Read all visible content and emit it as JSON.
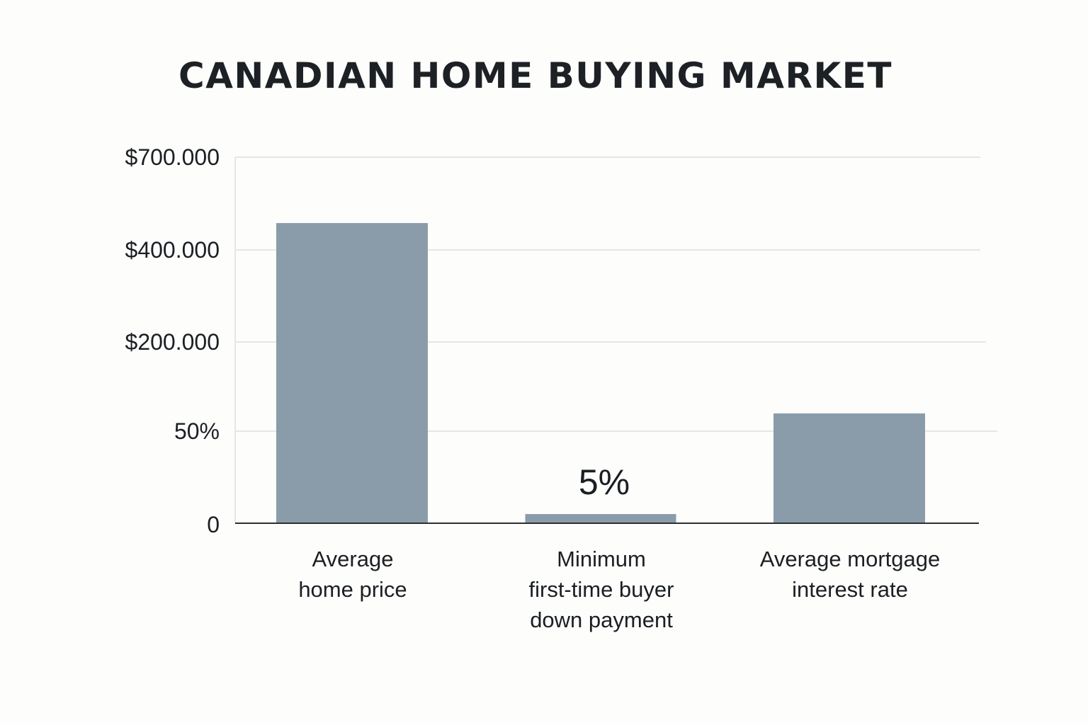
{
  "chart_data": {
    "type": "bar",
    "title": "CANADIAN HOME BUYING MARKET",
    "xlabel": "",
    "ylabel": "",
    "categories": [
      [
        "Average",
        "home price"
      ],
      [
        "Minimum",
        "first-time buyer",
        "down payment"
      ],
      [
        "Average mortgage",
        "interest rate"
      ]
    ],
    "y_ticks": [
      {
        "label": "$700.000"
      },
      {
        "label": "$400.000"
      },
      {
        "label": "$200.000"
      },
      {
        "label": "50%"
      },
      {
        "label": "0"
      }
    ],
    "values": [
      0.82,
      0.025,
      0.3
    ],
    "value_note": "bar heights as fraction of the top gridline ($700.000); axis is non-linear",
    "data_labels": [
      "",
      "5%",
      ""
    ],
    "grid": true,
    "legend": "none",
    "colors": {
      "bar": "#8a9ca9",
      "gridline": "#e4e6e8",
      "axis": "#2b2f33",
      "text": "#1b1f23",
      "background": "#fdfdfc"
    }
  }
}
